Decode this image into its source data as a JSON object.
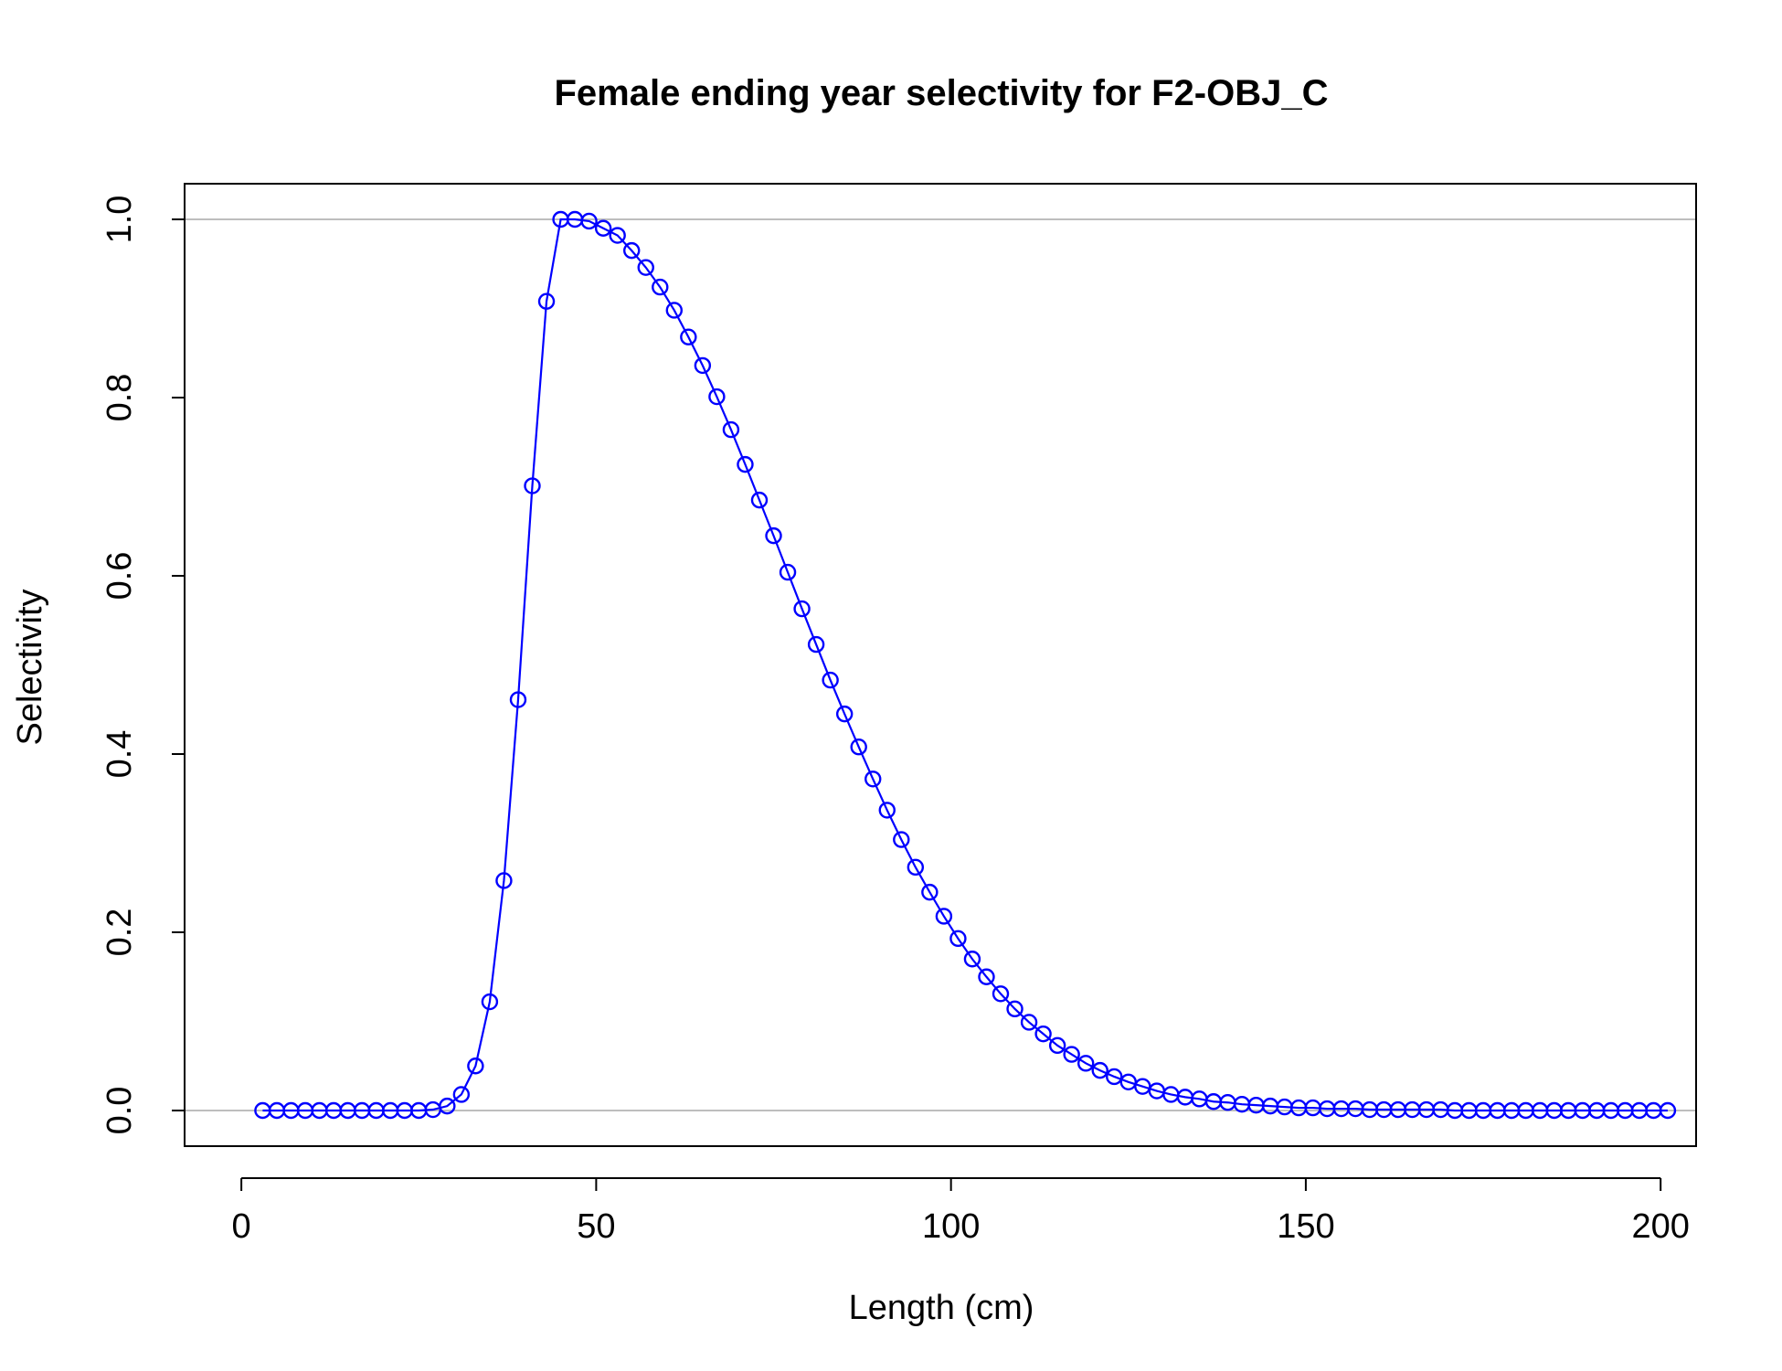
{
  "chart_data": {
    "type": "line",
    "title": "Female ending year selectivity for F2-OBJ_C",
    "xlabel": "Length (cm)",
    "ylabel": "Selectivity",
    "xlim": [
      -8,
      205
    ],
    "ylim": [
      -0.04,
      1.04
    ],
    "xticks": [
      0,
      50,
      100,
      150,
      200
    ],
    "yticks": [
      0.0,
      0.2,
      0.4,
      0.6,
      0.8,
      1.0
    ],
    "xtick_labels": [
      "0",
      "50",
      "100",
      "150",
      "200"
    ],
    "ytick_labels": [
      "0.0",
      "0.2",
      "0.4",
      "0.6",
      "0.8",
      "1.0"
    ],
    "reference_lines": [
      0,
      1
    ],
    "grid": false,
    "markers": "open-circle",
    "colors": {
      "series": "#0000ff",
      "reference": "#bebebe",
      "axes": "#000000"
    },
    "series": [
      {
        "x": [
          3,
          5,
          7,
          9,
          11,
          13,
          15,
          17,
          19,
          21,
          23,
          25,
          27,
          29,
          31,
          33,
          35,
          37,
          39,
          41,
          43,
          45,
          47,
          49,
          51,
          53,
          55,
          57,
          59,
          61,
          63,
          65,
          67,
          69,
          71,
          73,
          75,
          77,
          79,
          81,
          83,
          85,
          87,
          89,
          91,
          93,
          95,
          97,
          99,
          101,
          103,
          105,
          107,
          109,
          111,
          113,
          115,
          117,
          119,
          121,
          123,
          125,
          127,
          129,
          131,
          133,
          135,
          137,
          139,
          141,
          143,
          145,
          147,
          149,
          151,
          153,
          155,
          157,
          159,
          161,
          163,
          165,
          167,
          169,
          171,
          173,
          175,
          177,
          179,
          181,
          183,
          185,
          187,
          189,
          191,
          193,
          195,
          197,
          199,
          201
        ],
        "values": [
          0,
          0,
          0,
          0,
          0,
          0,
          0,
          0,
          0,
          0,
          0,
          0,
          0.001,
          0.005,
          0.018,
          0.05,
          0.122,
          0.258,
          0.461,
          0.701,
          0.908,
          1.0,
          1.0,
          0.998,
          0.99,
          0.982,
          0.965,
          0.946,
          0.924,
          0.898,
          0.868,
          0.836,
          0.801,
          0.764,
          0.725,
          0.685,
          0.645,
          0.604,
          0.563,
          0.523,
          0.483,
          0.445,
          0.408,
          0.372,
          0.337,
          0.304,
          0.273,
          0.245,
          0.218,
          0.193,
          0.17,
          0.15,
          0.131,
          0.114,
          0.099,
          0.086,
          0.073,
          0.063,
          0.053,
          0.045,
          0.038,
          0.032,
          0.027,
          0.022,
          0.018,
          0.015,
          0.013,
          0.01,
          0.009,
          0.007,
          0.006,
          0.005,
          0.004,
          0.003,
          0.003,
          0.002,
          0.002,
          0.002,
          0.001,
          0.001,
          0.001,
          0.001,
          0.001,
          0.001,
          0,
          0,
          0,
          0,
          0,
          0,
          0,
          0,
          0,
          0,
          0,
          0,
          0,
          0,
          0,
          0
        ]
      }
    ]
  }
}
